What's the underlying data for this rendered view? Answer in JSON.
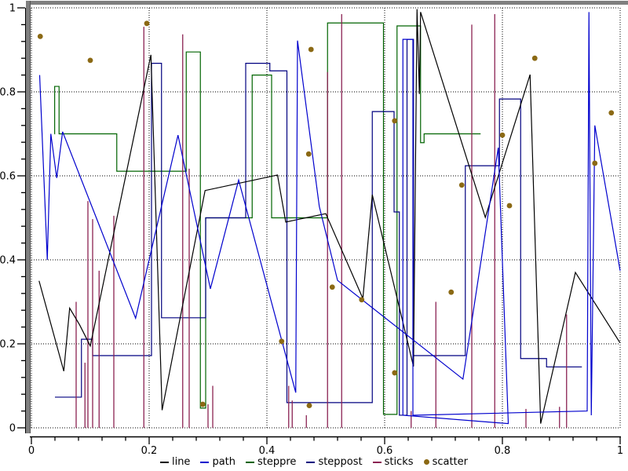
{
  "chart_data": {
    "type": "line",
    "title": "",
    "xlabel": "",
    "ylabel": "",
    "xlim": [
      0,
      1
    ],
    "ylim": [
      0,
      1
    ],
    "x_tick_labels": [
      "0",
      "0.2",
      "0.4",
      "0.6",
      "0.8",
      "1"
    ],
    "y_tick_labels": [
      "0",
      "0.2",
      "0.4",
      "0.6",
      "0.8",
      "1"
    ],
    "major_tick_step": 0.2,
    "minor_tick_step": 0.04,
    "grid": "dotted-major-both-axes",
    "frame_color": "#7f7f7f",
    "grid_color": "#000000",
    "background": "#ffffff",
    "legend_position": "bottom-center",
    "series": [
      {
        "name": "line",
        "type": "line",
        "color": "#000000",
        "points": [
          [
            0.013,
            0.35
          ],
          [
            0.055,
            0.135
          ],
          [
            0.065,
            0.285
          ],
          [
            0.082,
            0.245
          ],
          [
            0.1,
            0.195
          ],
          [
            0.203,
            0.888
          ],
          [
            0.222,
            0.042
          ],
          [
            0.295,
            0.565
          ],
          [
            0.418,
            0.602
          ],
          [
            0.432,
            0.49
          ],
          [
            0.5,
            0.51
          ],
          [
            0.563,
            0.308
          ],
          [
            0.579,
            0.555
          ],
          [
            0.649,
            0.146
          ],
          [
            0.655,
            0.997
          ],
          [
            0.659,
            0.795
          ],
          [
            0.661,
            0.99
          ],
          [
            0.771,
            0.501
          ],
          [
            0.847,
            0.841
          ],
          [
            0.865,
            0.01
          ],
          [
            0.924,
            0.37
          ],
          [
            1.0,
            0.202
          ]
        ]
      },
      {
        "name": "path",
        "type": "path",
        "color": "#0000cd",
        "points": [
          [
            0.014,
            0.84
          ],
          [
            0.027,
            0.4
          ],
          [
            0.033,
            0.7
          ],
          [
            0.043,
            0.595
          ],
          [
            0.053,
            0.705
          ],
          [
            0.177,
            0.261
          ],
          [
            0.249,
            0.697
          ],
          [
            0.304,
            0.331
          ],
          [
            0.352,
            0.59
          ],
          [
            0.449,
            0.084
          ],
          [
            0.452,
            0.922
          ],
          [
            0.489,
            0.527
          ],
          [
            0.52,
            0.351
          ],
          [
            0.733,
            0.116
          ],
          [
            0.793,
            0.667
          ],
          [
            0.81,
            0.01
          ],
          [
            0.631,
            0.03
          ],
          [
            0.631,
            0.925
          ],
          [
            0.648,
            0.925
          ],
          [
            0.648,
            0.03
          ],
          [
            0.944,
            0.04
          ],
          [
            0.947,
            0.99
          ],
          [
            0.951,
            0.03
          ],
          [
            0.957,
            0.72
          ],
          [
            1.0,
            0.374
          ]
        ]
      },
      {
        "name": "steppre",
        "type": "steppre",
        "color": "#006400",
        "points": [
          [
            0.039,
            0.7
          ],
          [
            0.0395,
            0.813
          ],
          [
            0.047,
            0.7
          ],
          [
            0.145,
            0.611
          ],
          [
            0.263,
            0.895
          ],
          [
            0.287,
            0.047
          ],
          [
            0.296,
            0.5
          ],
          [
            0.375,
            0.84
          ],
          [
            0.408,
            0.5
          ],
          [
            0.503,
            0.964
          ],
          [
            0.598,
            0.032
          ],
          [
            0.621,
            0.957
          ],
          [
            0.661,
            0.679
          ],
          [
            0.667,
            0.7
          ],
          [
            0.763,
            0.7
          ]
        ]
      },
      {
        "name": "steppost",
        "type": "steppost",
        "color": "#000080",
        "points": [
          [
            0.04,
            0.073
          ],
          [
            0.085,
            0.211
          ],
          [
            0.104,
            0.172
          ],
          [
            0.204,
            0.868
          ],
          [
            0.221,
            0.262
          ],
          [
            0.296,
            0.5
          ],
          [
            0.364,
            0.868
          ],
          [
            0.405,
            0.85
          ],
          [
            0.434,
            0.06
          ],
          [
            0.579,
            0.753
          ],
          [
            0.616,
            0.514
          ],
          [
            0.625,
            0.03
          ],
          [
            0.638,
            0.925
          ],
          [
            0.649,
            0.172
          ],
          [
            0.737,
            0.624
          ],
          [
            0.795,
            0.783
          ],
          [
            0.831,
            0.165
          ],
          [
            0.875,
            0.145
          ],
          [
            0.935,
            0.145
          ]
        ]
      },
      {
        "name": "sticks",
        "type": "sticks",
        "color": "#8b2252",
        "points": [
          [
            0.076,
            0.3
          ],
          [
            0.091,
            0.155
          ],
          [
            0.096,
            0.54
          ],
          [
            0.104,
            0.497
          ],
          [
            0.115,
            0.374
          ],
          [
            0.14,
            0.505
          ],
          [
            0.191,
            0.955
          ],
          [
            0.257,
            0.937
          ],
          [
            0.268,
            0.617
          ],
          [
            0.3,
            0.056
          ],
          [
            0.308,
            0.1
          ],
          [
            0.437,
            0.1
          ],
          [
            0.443,
            0.065
          ],
          [
            0.467,
            0.03
          ],
          [
            0.503,
            0.847
          ],
          [
            0.527,
            0.985
          ],
          [
            0.645,
            0.04
          ],
          [
            0.687,
            0.3
          ],
          [
            0.748,
            0.96
          ],
          [
            0.787,
            0.985
          ],
          [
            0.84,
            0.045
          ],
          [
            0.897,
            0.05
          ],
          [
            0.909,
            0.27
          ]
        ]
      },
      {
        "name": "scatter",
        "type": "scatter",
        "color": "#8b6914",
        "points": [
          [
            0.015,
            0.932
          ],
          [
            0.1,
            0.875
          ],
          [
            0.196,
            0.963
          ],
          [
            0.291,
            0.056
          ],
          [
            0.425,
            0.206
          ],
          [
            0.471,
            0.652
          ],
          [
            0.475,
            0.901
          ],
          [
            0.472,
            0.053
          ],
          [
            0.511,
            0.335
          ],
          [
            0.561,
            0.305
          ],
          [
            0.617,
            0.131
          ],
          [
            0.617,
            0.731
          ],
          [
            0.713,
            0.323
          ],
          [
            0.731,
            0.578
          ],
          [
            0.8,
            0.697
          ],
          [
            0.812,
            0.529
          ],
          [
            0.855,
            0.88
          ],
          [
            0.957,
            0.63
          ],
          [
            0.985,
            0.75
          ]
        ]
      }
    ]
  }
}
